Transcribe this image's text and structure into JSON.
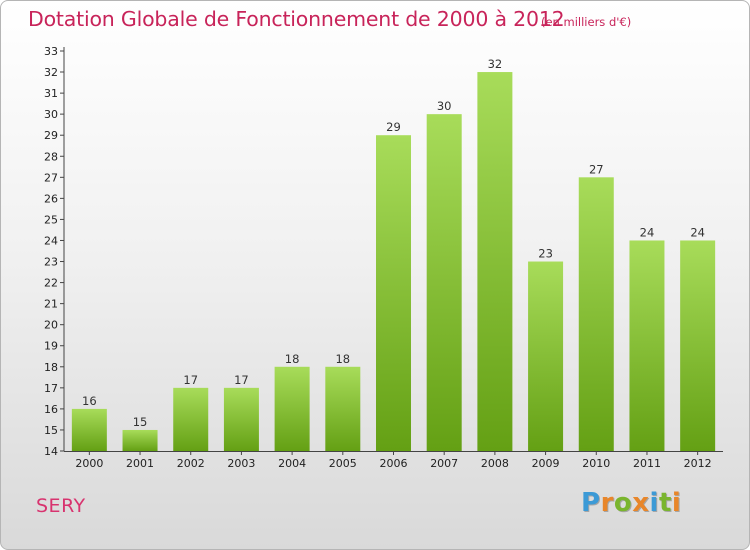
{
  "header": {
    "title": "Dotation Globale de Fonctionnement de 2000 à 2012",
    "unit": "(en milliers d'€)"
  },
  "commune": "SERY",
  "logo": {
    "letters": [
      "P",
      "r",
      "o",
      "x",
      "i",
      "t",
      "i"
    ],
    "colors": [
      "#3c9ad6",
      "#e8862a",
      "#7ab52e",
      "#e8862a",
      "#3c9ad6",
      "#7ab52e",
      "#e8862a"
    ]
  },
  "colors": {
    "bar_light": "#a8dc5a",
    "bar_dark": "#64a014",
    "title": "#c8245a"
  },
  "chart_data": {
    "type": "bar",
    "title": "Dotation Globale de Fonctionnement de 2000 à 2012",
    "subtitle": "(en milliers d'€)",
    "categories": [
      "2000",
      "2001",
      "2002",
      "2003",
      "2004",
      "2005",
      "2006",
      "2007",
      "2008",
      "2009",
      "2010",
      "2011",
      "2012"
    ],
    "values": [
      16,
      15,
      17,
      17,
      18,
      18,
      29,
      30,
      32,
      23,
      27,
      24,
      24
    ],
    "ylim": [
      14,
      33
    ],
    "yticks": [
      14,
      15,
      16,
      17,
      18,
      19,
      20,
      21,
      22,
      23,
      24,
      25,
      26,
      27,
      28,
      29,
      30,
      31,
      32,
      33
    ],
    "grid": false,
    "legend": "none"
  }
}
